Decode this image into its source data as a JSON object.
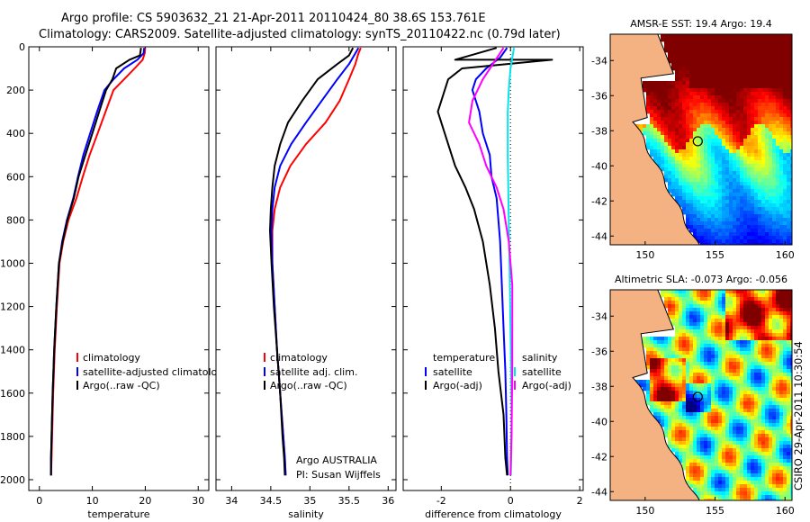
{
  "title": {
    "line1": "Argo profile: CS 5903632_21 21-Apr-2011 20110424_80 38.6S 153.761E",
    "line2": "Climatology: CARS2009. Satellite-adjusted climatology: synTS_20110422.nc (0.79d later)"
  },
  "side_stamp": "CSIRO 29-Apr-2011 10:30:54",
  "colors": {
    "climatology": "#ff0000",
    "satellite": "#0000ff",
    "argo": "#000000",
    "salinity_satellite": "#00e5ee",
    "salinity_argo": "#ff00ff",
    "land": "#f4b182"
  },
  "chart_data": [
    {
      "type": "line",
      "xlabel": "temperature",
      "ylabel": "",
      "xlim": [
        -2,
        32
      ],
      "ylim": [
        2050,
        0
      ],
      "xticks": [
        0,
        10,
        20,
        30
      ],
      "yticks": [
        0,
        200,
        400,
        600,
        800,
        1000,
        1200,
        1400,
        1600,
        1800,
        2000
      ],
      "legend": {
        "position": "lower-right",
        "entries": [
          "climatology",
          "satellite-adjusted climatology",
          "Argo(..raw -QC)"
        ]
      },
      "series": [
        {
          "name": "climatology",
          "color": "#ff0000",
          "x": [
            20.0,
            19.9,
            19.5,
            18.0,
            16.0,
            14.0,
            12.5,
            11.0,
            9.5,
            8.2,
            7.0,
            5.5,
            4.5,
            3.8,
            3.3,
            2.9,
            2.6,
            2.4,
            2.3,
            2.2
          ],
          "y": [
            5,
            30,
            60,
            100,
            150,
            200,
            300,
            400,
            500,
            600,
            700,
            800,
            900,
            1000,
            1200,
            1400,
            1600,
            1800,
            1900,
            1980
          ]
        },
        {
          "name": "satellite-adjusted climatology",
          "color": "#0000ff",
          "x": [
            19.8,
            19.7,
            18.5,
            16.0,
            14.0,
            12.3,
            10.9,
            9.6,
            8.3,
            7.3,
            6.4,
            5.2,
            4.3,
            3.7,
            3.2,
            2.8,
            2.5,
            2.3,
            2.2,
            2.2
          ],
          "y": [
            5,
            30,
            60,
            100,
            150,
            200,
            300,
            400,
            500,
            600,
            700,
            800,
            900,
            1000,
            1200,
            1400,
            1600,
            1800,
            1900,
            1980
          ]
        },
        {
          "name": "Argo(..raw -QC)",
          "color": "#000000",
          "x": [
            19.2,
            19.0,
            17.0,
            14.5,
            13.8,
            12.6,
            11.3,
            10.0,
            8.7,
            7.4,
            6.5,
            5.3,
            4.4,
            3.7,
            3.2,
            2.8,
            2.5,
            2.3,
            2.2,
            2.2
          ],
          "y": [
            5,
            40,
            60,
            100,
            150,
            200,
            300,
            400,
            500,
            600,
            700,
            800,
            900,
            1000,
            1200,
            1400,
            1600,
            1800,
            1900,
            1980
          ]
        }
      ]
    },
    {
      "type": "line",
      "xlabel": "salinity",
      "ylabel": "",
      "xlim": [
        33.8,
        36.1
      ],
      "ylim": [
        2050,
        0
      ],
      "xticks": [
        34,
        34.5,
        35,
        35.5,
        36
      ],
      "legend": {
        "position": "lower-right",
        "entries": [
          "climatology",
          "satellite adj. clim.",
          "Argo(..raw -QC)"
        ]
      },
      "annotations": [
        "Argo AUSTRALIA",
        "PI: Susan Wijffels"
      ],
      "series": [
        {
          "name": "climatology",
          "color": "#ff0000",
          "x": [
            35.65,
            35.62,
            35.58,
            35.5,
            35.38,
            35.2,
            34.95,
            34.75,
            34.62,
            34.55,
            34.52,
            34.52,
            34.55,
            34.58,
            34.62,
            34.66,
            34.68,
            34.69
          ],
          "y": [
            5,
            30,
            80,
            150,
            250,
            350,
            450,
            550,
            650,
            750,
            850,
            1000,
            1200,
            1400,
            1600,
            1800,
            1900,
            1980
          ]
        },
        {
          "name": "satellite adj. clim.",
          "color": "#0000ff",
          "x": [
            35.62,
            35.58,
            35.5,
            35.35,
            35.15,
            34.95,
            34.76,
            34.62,
            34.55,
            34.52,
            34.51,
            34.52,
            34.55,
            34.58,
            34.62,
            34.66,
            34.68,
            34.69
          ],
          "y": [
            5,
            30,
            80,
            150,
            250,
            350,
            450,
            550,
            650,
            750,
            850,
            1000,
            1200,
            1400,
            1600,
            1800,
            1900,
            1980
          ]
        },
        {
          "name": "Argo(..raw -QC)",
          "color": "#000000",
          "x": [
            35.55,
            35.5,
            35.35,
            35.1,
            34.9,
            34.72,
            34.62,
            34.55,
            34.52,
            34.5,
            34.49,
            34.51,
            34.54,
            34.58,
            34.62,
            34.65,
            34.67,
            34.68
          ],
          "y": [
            5,
            40,
            80,
            150,
            250,
            350,
            450,
            550,
            650,
            750,
            850,
            1000,
            1200,
            1400,
            1600,
            1800,
            1900,
            1980
          ]
        }
      ]
    },
    {
      "type": "line",
      "xlabel": "difference from climatology",
      "ylabel": "",
      "xlim": [
        -3.1,
        2.1
      ],
      "ylim": [
        2050,
        0
      ],
      "xticks": [
        -2,
        0,
        2
      ],
      "legend": {
        "position": "lower-center",
        "groups": [
          {
            "title": "temperature",
            "entries": [
              "satellite",
              "Argo(-adj)"
            ]
          },
          {
            "title": "salinity",
            "entries": [
              "satellite",
              "Argo(-adj)"
            ]
          }
        ]
      },
      "series": [
        {
          "name": "satellite",
          "group": "temperature",
          "color": "#0000ff",
          "x": [
            -0.1,
            -0.3,
            -0.7,
            -1.0,
            -1.1,
            -0.9,
            -0.8,
            -0.6,
            -0.55,
            -0.4,
            -0.3,
            -0.25,
            -0.2,
            -0.15,
            -0.12,
            -0.1,
            -0.08
          ],
          "y": [
            5,
            50,
            100,
            150,
            200,
            300,
            400,
            500,
            600,
            700,
            900,
            1100,
            1300,
            1500,
            1700,
            1900,
            1980
          ]
        },
        {
          "name": "Argo(-adj)",
          "group": "temperature",
          "color": "#000000",
          "x": [
            -0.4,
            -1.6,
            1.2,
            -1.4,
            -1.8,
            -2.1,
            -1.8,
            -1.6,
            -1.3,
            -1.05,
            -0.8,
            -0.6,
            -0.45,
            -0.35,
            -0.2,
            -0.15,
            -0.1
          ],
          "y": [
            5,
            60,
            60,
            100,
            150,
            300,
            450,
            550,
            650,
            750,
            900,
            1100,
            1300,
            1500,
            1700,
            1900,
            1980
          ]
        },
        {
          "name": "satellite",
          "group": "salinity",
          "color": "#00e5ee",
          "x": [
            0.1,
            0.0,
            -0.05,
            -0.08,
            -0.08,
            -0.06,
            -0.04,
            -0.02,
            0.0,
            0.02,
            0.03,
            0.02,
            0.01
          ],
          "y": [
            5,
            100,
            200,
            300,
            500,
            700,
            900,
            1100,
            1300,
            1500,
            1700,
            1900,
            1980
          ]
        },
        {
          "name": "Argo(-adj)",
          "group": "salinity",
          "color": "#ff00ff",
          "x": [
            -0.2,
            -0.8,
            -1.1,
            -1.2,
            -0.9,
            -0.7,
            -0.4,
            -0.2,
            -0.05,
            0.05,
            0.05,
            0.03,
            0.0
          ],
          "y": [
            5,
            150,
            250,
            350,
            450,
            550,
            650,
            750,
            900,
            1100,
            1500,
            1800,
            1980
          ]
        }
      ]
    },
    {
      "type": "heatmap",
      "title": "AMSR-E SST: 19.4  Argo: 19.4",
      "xlim": [
        147.5,
        160.5
      ],
      "ylim": [
        -44.5,
        -32.5
      ],
      "xticks": [
        150,
        155,
        160
      ],
      "yticks": [
        -34,
        -36,
        -38,
        -40,
        -42,
        -44
      ],
      "marker": {
        "lon": 153.761,
        "lat": -38.6
      }
    },
    {
      "type": "heatmap",
      "title": "Altimetric SLA: -0.073  Argo: -0.056",
      "xlim": [
        147.5,
        160.5
      ],
      "ylim": [
        -44.5,
        -32.5
      ],
      "xticks": [
        150,
        155,
        160
      ],
      "yticks": [
        -34,
        -36,
        -38,
        -40,
        -42,
        -44
      ],
      "marker": {
        "lon": 153.761,
        "lat": -38.6
      }
    }
  ]
}
